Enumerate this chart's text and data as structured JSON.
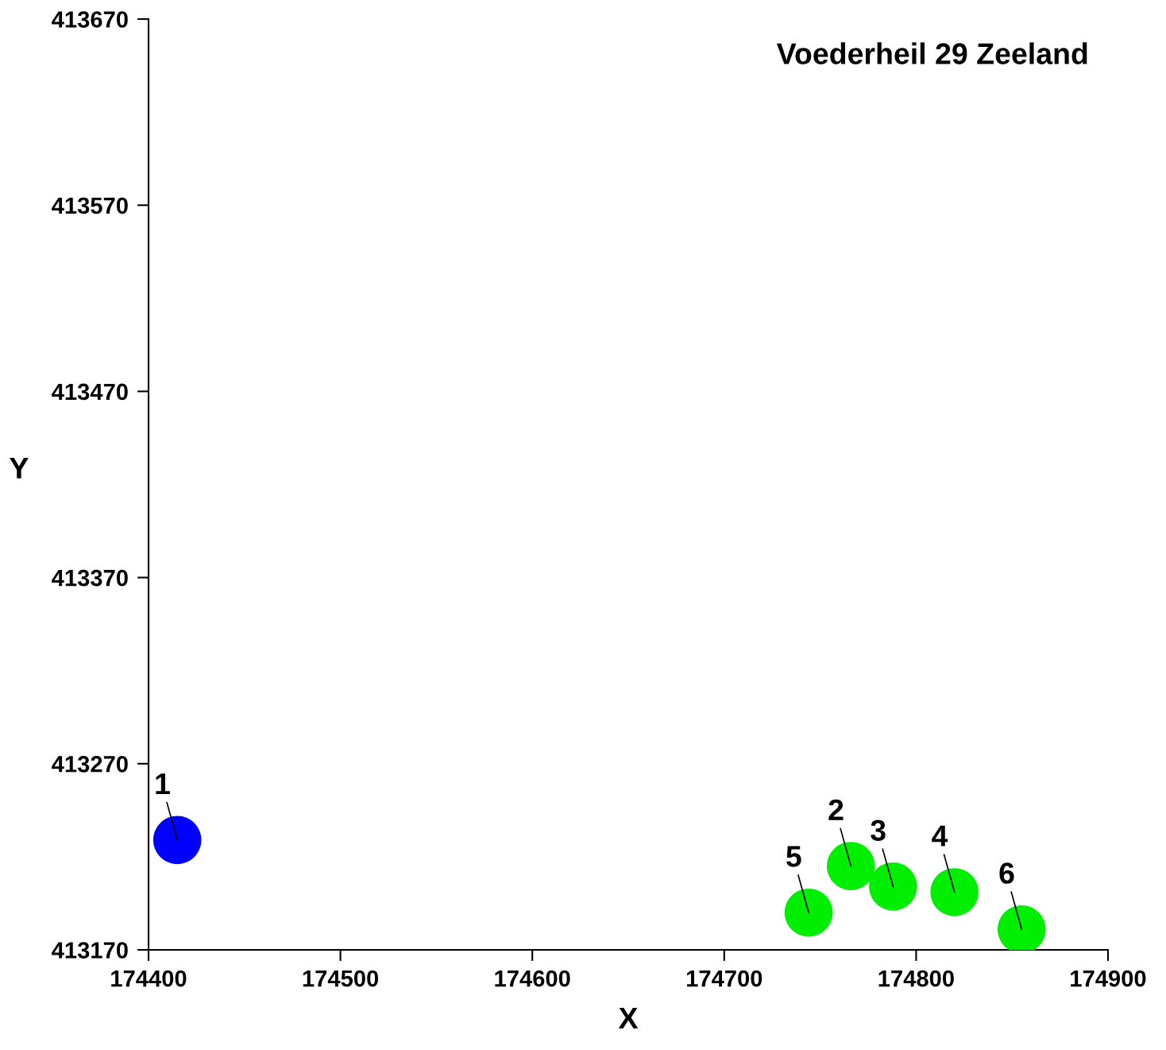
{
  "chart_data": {
    "type": "scatter",
    "title": "Voederheil 29 Zeeland",
    "xlabel": "X",
    "ylabel": "Y",
    "xlim": [
      174400,
      174900
    ],
    "xticks": [
      174400,
      174500,
      174600,
      174700,
      174800,
      174900
    ],
    "ylim": [
      413170,
      413670
    ],
    "yticks": [
      413170,
      413270,
      413370,
      413470,
      413570,
      413670
    ],
    "grid": false,
    "marker": "circle",
    "series": [
      {
        "color": "#0000ff",
        "x": [
          174415
        ],
        "values": [
          413229
        ]
      },
      {
        "color": "#00ee00",
        "x": [
          174766,
          174788,
          174820,
          174744,
          174855
        ],
        "values": [
          413215,
          413204,
          413201,
          413190,
          413181
        ]
      }
    ],
    "annotations": [
      {
        "text": "1",
        "x": 174415,
        "y": 413229
      },
      {
        "text": "2",
        "x": 174766,
        "y": 413215
      },
      {
        "text": "3",
        "x": 174788,
        "y": 413204
      },
      {
        "text": "4",
        "x": 174820,
        "y": 413201
      },
      {
        "text": "5",
        "x": 174744,
        "y": 413190
      },
      {
        "text": "6",
        "x": 174855,
        "y": 413181
      }
    ]
  }
}
